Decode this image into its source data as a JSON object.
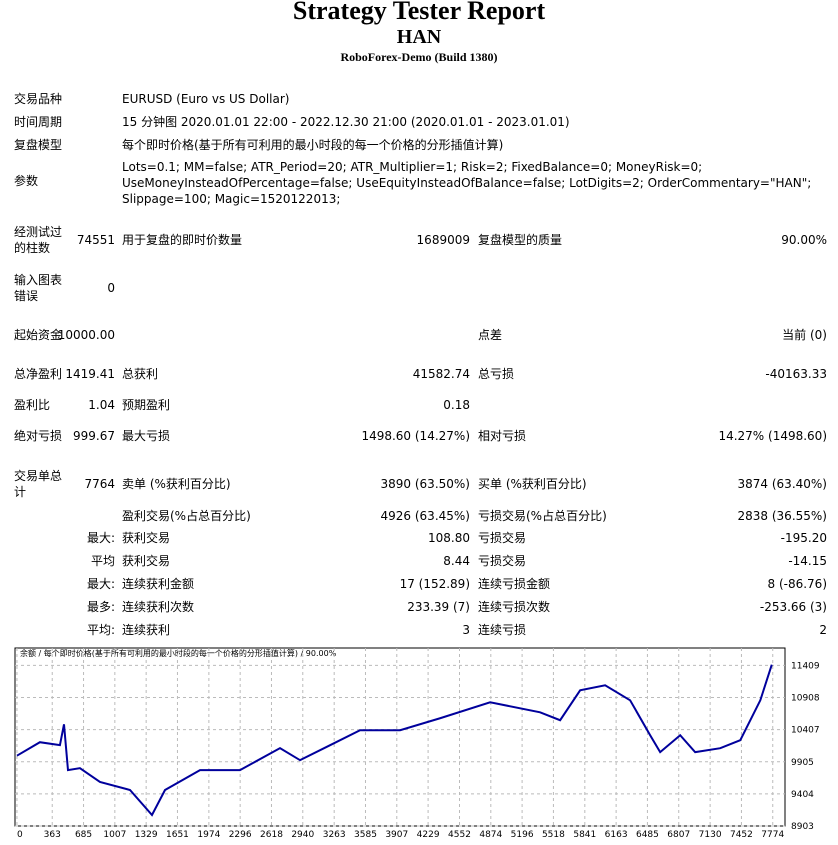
{
  "header": {
    "title": "Strategy Tester Report",
    "subtitle": "HAN",
    "broker": "RoboForex-Demo (Build 1380)"
  },
  "info": [
    {
      "label": "交易品种",
      "text": "EURUSD (Euro vs US Dollar)"
    },
    {
      "label": "时间周期",
      "text": "15 分钟图 2020.01.01 22:00 - 2022.12.30 21:00 (2020.01.01 - 2023.01.01)"
    },
    {
      "label": "复盘模型",
      "text": "每个即时价格(基于所有可利用的最小时段的每一个价格的分形插值计算)"
    },
    {
      "label": "参数",
      "text": "Lots=0.1; MM=false; ATR_Period=20; ATR_Multiplier=1; Risk=2; FixedBalance=0; MoneyRisk=0; UseMoneyInsteadOfPercentage=false; UseEquityInsteadOfBalance=false; LotDigits=2; OrderCommentary=\"HAN\"; Slippage=100; Magic=1520122013;"
    }
  ],
  "stats": [
    {
      "a": "经测试过的柱数",
      "b": "74551",
      "c": "用于复盘的即时价数量",
      "d": "1689009",
      "e": "复盘模型的质量",
      "f": "90.00%"
    },
    {
      "a": "输入图表错误",
      "b": "0"
    },
    {
      "a": "起始资金",
      "b": "10000.00",
      "e": "点差",
      "f": "当前 (0)"
    },
    {
      "a": "总净盈利",
      "b": "1419.41",
      "c": "总获利",
      "d": "41582.74",
      "e": "总亏损",
      "f": "-40163.33"
    },
    {
      "a": "盈利比",
      "b": "1.04",
      "c": "预期盈利",
      "d": "0.18"
    },
    {
      "a": "绝对亏损",
      "b": "999.67",
      "c": "最大亏损",
      "d": "1498.60 (14.27%)",
      "e": "相对亏损",
      "f": "14.27% (1498.60)"
    },
    {
      "a": "交易单总计",
      "b": "7764",
      "c": "卖单 (%获利百分比)",
      "d": "3890 (63.50%)",
      "e": "买单 (%获利百分比)",
      "f": "3874 (63.40%)"
    },
    {
      "c": "盈利交易(%占总百分比)",
      "d": "4926 (63.45%)",
      "e": "亏损交易(%占总百分比)",
      "f": "2838 (36.55%)"
    },
    {
      "b": "最大:",
      "c": "获利交易",
      "d": "108.80",
      "e": "亏损交易",
      "f": "-195.20"
    },
    {
      "b": "平均",
      "c": "获利交易",
      "d": "8.44",
      "e": "亏损交易",
      "f": "-14.15"
    },
    {
      "b": "最大:",
      "c": "连续获利金额",
      "d": "17 (152.89)",
      "e": "连续亏损金额",
      "f": "8 (-86.76)"
    },
    {
      "b": "最多:",
      "c": "连续获利次数",
      "d": "233.39 (7)",
      "e": "连续亏损次数",
      "f": "-253.66 (3)"
    },
    {
      "b": "平均:",
      "c": "连续获利",
      "d": "3",
      "e": "连续亏损",
      "f": "2"
    }
  ],
  "chart_data": {
    "type": "line",
    "title": "余额 / 每个即时价格(基于所有可利用的最小时段的每一个价格的分形插值计算) / 90.00%",
    "x": [
      0,
      236,
      442,
      484,
      525,
      648,
      854,
      1163,
      1389,
      1523,
      1883,
      2294,
      2706,
      2912,
      3221,
      3529,
      3941,
      4352,
      4867,
      5381,
      5587,
      5793,
      6050,
      6307,
      6513,
      6616,
      6822,
      6976,
      7234,
      7440,
      7646,
      7764
    ],
    "series": [
      {
        "name": "余额",
        "color": "#00009c",
        "values": [
          10000,
          10210,
          10164,
          10490,
          9775,
          9805,
          9590,
          9465,
          9075,
          9465,
          9775,
          9775,
          10117,
          9930,
          10164,
          10397,
          10397,
          10584,
          10833,
          10677,
          10553,
          11020,
          11098,
          10864,
          10319,
          10055,
          10319,
          10055,
          10117,
          10242,
          10864,
          11419
        ]
      }
    ],
    "xlim": [
      -20,
      7900
    ],
    "ylim": [
      8903,
      11680
    ],
    "xticks": [
      0,
      363,
      685,
      1007,
      1329,
      1651,
      1974,
      2296,
      2618,
      2940,
      3263,
      3585,
      3907,
      4229,
      4552,
      4874,
      5196,
      5518,
      5841,
      6163,
      6485,
      6807,
      7130,
      7452,
      7774
    ],
    "yticks": [
      8903,
      9404,
      9905,
      10407,
      10908,
      11409
    ],
    "grid": true
  }
}
